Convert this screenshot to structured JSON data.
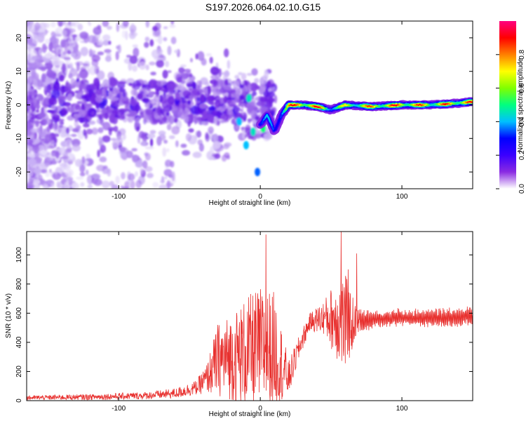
{
  "title": "S197.2026.064.02.10.G15",
  "chart_data": [
    {
      "type": "heatmap",
      "name": "spectrogram",
      "xlabel": "Height of straight line (km)",
      "ylabel": "Frequency (Hz)",
      "xlim": [
        -165,
        150
      ],
      "ylim": [
        -25,
        25
      ],
      "xticks": [
        -100,
        0,
        100
      ],
      "yticks": [
        -20,
        -10,
        0,
        10,
        20
      ],
      "colorbar": {
        "label": "Normalized spectral amplitude",
        "range": [
          0,
          1
        ],
        "ticks": [
          0.0,
          0.2,
          0.4,
          0.6,
          0.8
        ],
        "colors": [
          "#ffffff",
          "#8a2be2",
          "#3b00ff",
          "#0000ff",
          "#00c0ff",
          "#00ff80",
          "#80ff00",
          "#ffff00",
          "#ff8000",
          "#ff0000",
          "#ff0080"
        ]
      },
      "ridge": {
        "description": "dominant signal frequency vs height",
        "x": [
          0,
          5,
          10,
          15,
          20,
          30,
          40,
          50,
          60,
          80,
          100,
          120,
          140,
          150
        ],
        "y": [
          -6,
          -3,
          -8,
          -3,
          0,
          0,
          -0.5,
          -1.5,
          0,
          -0.5,
          0,
          0,
          0.5,
          1
        ],
        "amp": [
          0.35,
          0.4,
          0.4,
          0.6,
          0.85,
          0.95,
          0.9,
          0.6,
          0.7,
          0.85,
          0.9,
          0.8,
          0.9,
          0.85
        ]
      }
    },
    {
      "type": "line",
      "name": "snr",
      "xlabel": "Height of straight line (km)",
      "ylabel": "SNR (10 * v/v)",
      "xlim": [
        -165,
        150
      ],
      "ylim": [
        0,
        1160
      ],
      "xticks": [
        -100,
        0,
        100
      ],
      "yticks": [
        0,
        200,
        400,
        600,
        800,
        1000
      ],
      "color": "#e8312f",
      "envelope": {
        "x": [
          -165,
          -120,
          -80,
          -60,
          -45,
          -38,
          -30,
          -20,
          -10,
          0,
          10,
          20,
          28,
          35,
          45,
          55,
          60,
          68,
          80,
          100,
          120,
          150
        ],
        "mean": [
          20,
          25,
          35,
          50,
          90,
          150,
          280,
          300,
          330,
          360,
          350,
          150,
          380,
          540,
          570,
          560,
          520,
          540,
          560,
          570,
          565,
          575
        ],
        "amp": [
          15,
          20,
          25,
          35,
          50,
          100,
          250,
          300,
          380,
          420,
          400,
          120,
          80,
          60,
          120,
          300,
          350,
          100,
          60,
          60,
          60,
          70
        ]
      },
      "peaks": [
        {
          "x": 4,
          "y": 1140
        },
        {
          "x": 57,
          "y": 1160
        },
        {
          "x": 62,
          "y": 900
        },
        {
          "x": 68,
          "y": 1010
        }
      ]
    }
  ]
}
